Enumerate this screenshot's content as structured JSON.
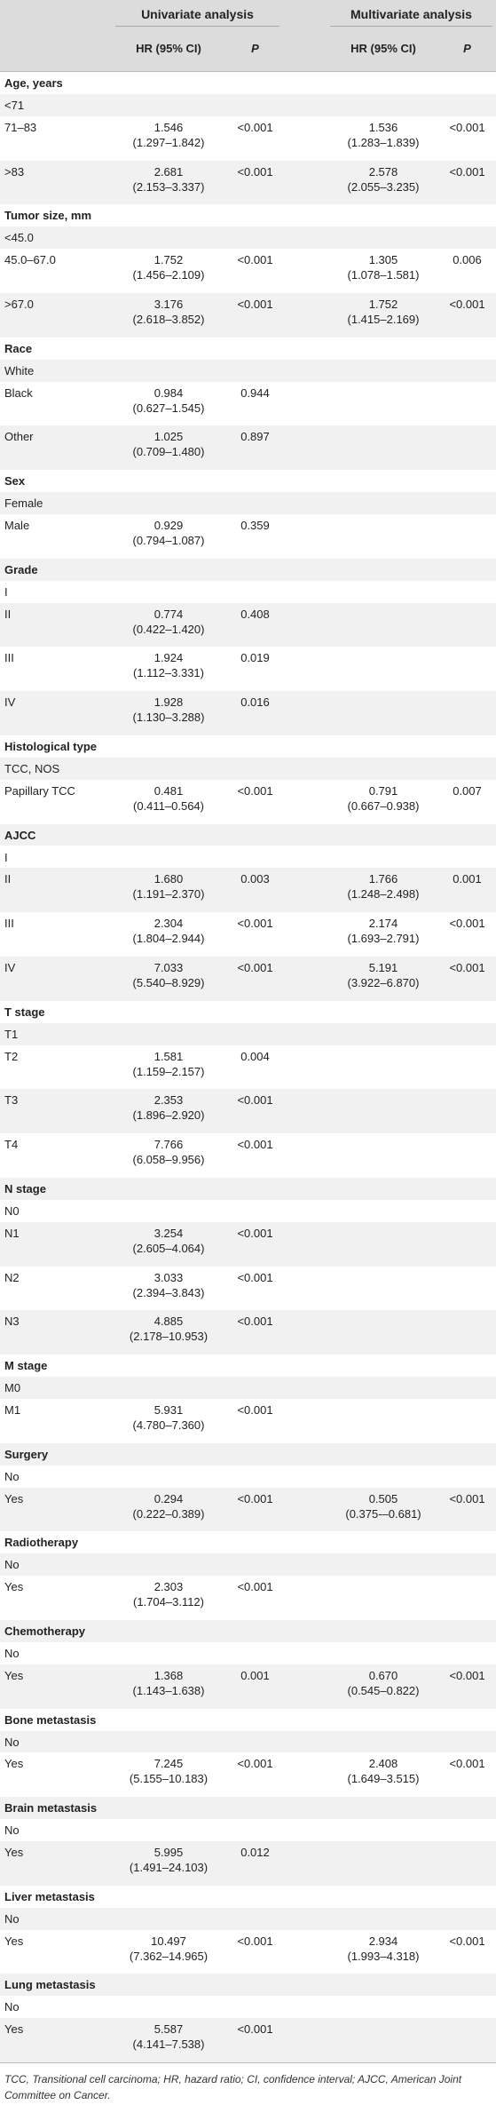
{
  "header": {
    "univariate": "Univariate analysis",
    "multivariate": "Multivariate analysis",
    "hr_label": "HR (95% CI)",
    "p_label": "P"
  },
  "rows": [
    {
      "kind": "group",
      "label": "Age, years"
    },
    {
      "kind": "ref",
      "label": "<71"
    },
    {
      "kind": "data",
      "label": "71–83",
      "u_hr": "1.546",
      "u_ci": "(1.297–1.842)",
      "u_p": "<0.001",
      "m_hr": "1.536",
      "m_ci": "(1.283–1.839)",
      "m_p": "<0.001"
    },
    {
      "kind": "data",
      "label": ">83",
      "u_hr": "2.681",
      "u_ci": "(2.153–3.337)",
      "u_p": "<0.001",
      "m_hr": "2.578",
      "m_ci": "(2.055–3.235)",
      "m_p": "<0.001"
    },
    {
      "kind": "group",
      "label": "Tumor size, mm"
    },
    {
      "kind": "ref",
      "label": "<45.0"
    },
    {
      "kind": "data",
      "label": "45.0–67.0",
      "u_hr": "1.752",
      "u_ci": "(1.456–2.109)",
      "u_p": "<0.001",
      "m_hr": "1.305",
      "m_ci": "(1.078–1.581)",
      "m_p": "0.006"
    },
    {
      "kind": "data",
      "label": ">67.0",
      "u_hr": "3.176",
      "u_ci": "(2.618–3.852)",
      "u_p": "<0.001",
      "m_hr": "1.752",
      "m_ci": "(1.415–2.169)",
      "m_p": "<0.001"
    },
    {
      "kind": "group",
      "label": "Race"
    },
    {
      "kind": "ref",
      "label": "White"
    },
    {
      "kind": "data",
      "label": "Black",
      "u_hr": "0.984",
      "u_ci": "(0.627–1.545)",
      "u_p": "0.944"
    },
    {
      "kind": "data",
      "label": "Other",
      "u_hr": "1.025",
      "u_ci": "(0.709–1.480)",
      "u_p": "0.897"
    },
    {
      "kind": "group",
      "label": "Sex"
    },
    {
      "kind": "ref",
      "label": "Female"
    },
    {
      "kind": "data",
      "label": "Male",
      "u_hr": "0.929",
      "u_ci": "(0.794–1.087)",
      "u_p": "0.359"
    },
    {
      "kind": "group",
      "label": "Grade"
    },
    {
      "kind": "ref",
      "label": "I"
    },
    {
      "kind": "data",
      "label": "II",
      "u_hr": "0.774",
      "u_ci": "(0.422–1.420)",
      "u_p": "0.408"
    },
    {
      "kind": "data",
      "label": "III",
      "u_hr": "1.924",
      "u_ci": "(1.112–3.331)",
      "u_p": "0.019"
    },
    {
      "kind": "data",
      "label": "IV",
      "u_hr": "1.928",
      "u_ci": "(1.130–3.288)",
      "u_p": "0.016"
    },
    {
      "kind": "group",
      "label": "Histological type"
    },
    {
      "kind": "ref",
      "label": "TCC, NOS"
    },
    {
      "kind": "data",
      "label": "Papillary TCC",
      "u_hr": "0.481",
      "u_ci": "(0.411–0.564)",
      "u_p": "<0.001",
      "m_hr": "0.791",
      "m_ci": "(0.667–0.938)",
      "m_p": "0.007"
    },
    {
      "kind": "group",
      "label": "AJCC"
    },
    {
      "kind": "ref",
      "label": "I"
    },
    {
      "kind": "data",
      "label": "II",
      "u_hr": "1.680",
      "u_ci": "(1.191–2.370)",
      "u_p": "0.003",
      "m_hr": "1.766",
      "m_ci": "(1.248–2.498)",
      "m_p": "0.001"
    },
    {
      "kind": "data",
      "label": "III",
      "u_hr": "2.304",
      "u_ci": "(1.804–2.944)",
      "u_p": "<0.001",
      "m_hr": "2.174",
      "m_ci": "(1.693–2.791)",
      "m_p": "<0.001"
    },
    {
      "kind": "data",
      "label": "IV",
      "u_hr": "7.033",
      "u_ci": "(5.540–8.929)",
      "u_p": "<0.001",
      "m_hr": "5.191",
      "m_ci": "(3.922–6.870)",
      "m_p": "<0.001"
    },
    {
      "kind": "group",
      "label": "T stage"
    },
    {
      "kind": "ref",
      "label": "T1"
    },
    {
      "kind": "data",
      "label": "T2",
      "u_hr": "1.581",
      "u_ci": "(1.159–2.157)",
      "u_p": "0.004"
    },
    {
      "kind": "data",
      "label": "T3",
      "u_hr": "2.353",
      "u_ci": "(1.896–2.920)",
      "u_p": "<0.001"
    },
    {
      "kind": "data",
      "label": "T4",
      "u_hr": "7.766",
      "u_ci": "(6.058–9.956)",
      "u_p": "<0.001"
    },
    {
      "kind": "group",
      "label": "N stage"
    },
    {
      "kind": "ref",
      "label": "N0"
    },
    {
      "kind": "data",
      "label": "N1",
      "u_hr": "3.254",
      "u_ci": "(2.605–4.064)",
      "u_p": "<0.001"
    },
    {
      "kind": "data",
      "label": "N2",
      "u_hr": "3.033",
      "u_ci": "(2.394–3.843)",
      "u_p": "<0.001"
    },
    {
      "kind": "data",
      "label": "N3",
      "u_hr": "4.885",
      "u_ci": "(2.178–10.953)",
      "u_p": "<0.001"
    },
    {
      "kind": "group",
      "label": "M stage"
    },
    {
      "kind": "ref",
      "label": "M0"
    },
    {
      "kind": "data",
      "label": "M1",
      "u_hr": "5.931",
      "u_ci": "(4.780–7.360)",
      "u_p": "<0.001"
    },
    {
      "kind": "group",
      "label": "Surgery"
    },
    {
      "kind": "ref",
      "label": "No"
    },
    {
      "kind": "data",
      "label": "Yes",
      "u_hr": "0.294",
      "u_ci": "(0.222–0.389)",
      "u_p": "<0.001",
      "m_hr": "0.505",
      "m_ci": "(0.375-–0.681)",
      "m_p": "<0.001"
    },
    {
      "kind": "group",
      "label": "Radiotherapy"
    },
    {
      "kind": "ref",
      "label": "No"
    },
    {
      "kind": "data",
      "label": "Yes",
      "u_hr": "2.303",
      "u_ci": "(1.704–3.112)",
      "u_p": "<0.001"
    },
    {
      "kind": "group",
      "label": "Chemotherapy"
    },
    {
      "kind": "ref",
      "label": "No"
    },
    {
      "kind": "data",
      "label": "Yes",
      "u_hr": "1.368",
      "u_ci": "(1.143–1.638)",
      "u_p": "0.001",
      "m_hr": "0.670",
      "m_ci": "(0.545–0.822)",
      "m_p": "<0.001"
    },
    {
      "kind": "group",
      "label": "Bone metastasis"
    },
    {
      "kind": "ref",
      "label": "No"
    },
    {
      "kind": "data",
      "label": "Yes",
      "u_hr": "7.245",
      "u_ci": "(5.155–10.183)",
      "u_p": "<0.001",
      "m_hr": "2.408",
      "m_ci": "(1.649–3.515)",
      "m_p": "<0.001"
    },
    {
      "kind": "group",
      "label": "Brain metastasis"
    },
    {
      "kind": "ref",
      "label": "No"
    },
    {
      "kind": "data",
      "label": "Yes",
      "u_hr": "5.995",
      "u_ci": "(1.491–24.103)",
      "u_p": "0.012"
    },
    {
      "kind": "group",
      "label": "Liver metastasis"
    },
    {
      "kind": "ref",
      "label": "No"
    },
    {
      "kind": "data",
      "label": "Yes",
      "u_hr": "10.497",
      "u_ci": "(7.362–14.965)",
      "u_p": "<0.001",
      "m_hr": "2.934",
      "m_ci": "(1.993–4.318)",
      "m_p": "<0.001"
    },
    {
      "kind": "group",
      "label": "Lung metastasis"
    },
    {
      "kind": "ref",
      "label": "No"
    },
    {
      "kind": "data",
      "label": "Yes",
      "u_hr": "5.587",
      "u_ci": "(4.141–7.538)",
      "u_p": "<0.001"
    }
  ],
  "footnote": "TCC, Transitional cell carcinoma; HR, hazard ratio; CI, confidence interval; AJCC, American Joint Committee on Cancer."
}
